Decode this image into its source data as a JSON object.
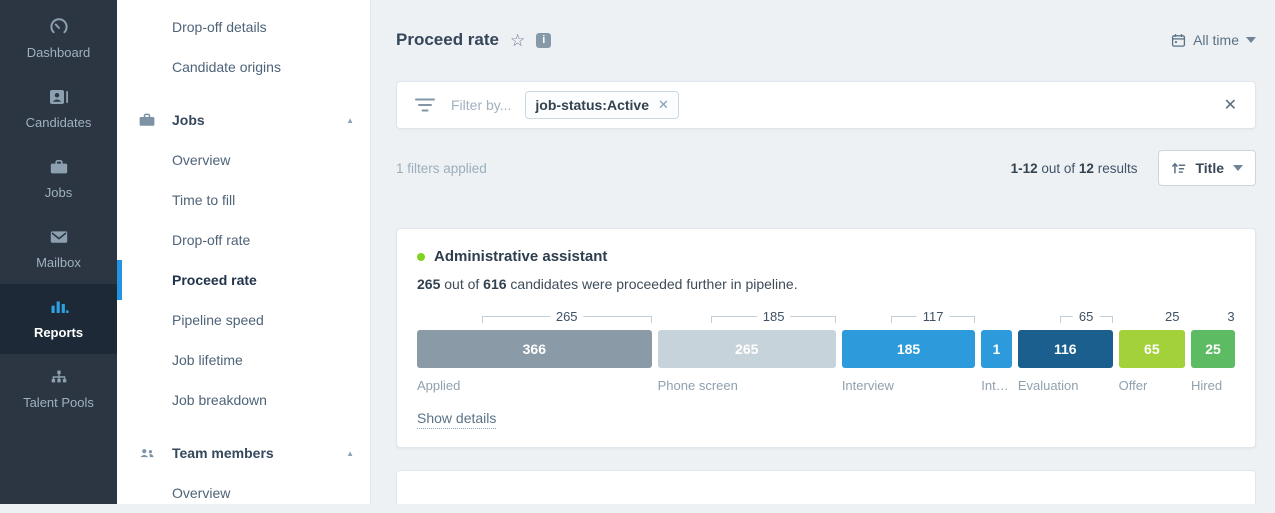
{
  "primary_sidebar": {
    "items": [
      {
        "label": "Dashboard",
        "icon": "gauge-icon",
        "active": false
      },
      {
        "label": "Candidates",
        "icon": "contact-card-icon",
        "active": false
      },
      {
        "label": "Jobs",
        "icon": "briefcase-icon",
        "active": false
      },
      {
        "label": "Mailbox",
        "icon": "envelope-icon",
        "active": false
      },
      {
        "label": "Reports",
        "icon": "bar-chart-icon",
        "active": true
      },
      {
        "label": "Talent Pools",
        "icon": "sitemap-icon",
        "active": false
      }
    ]
  },
  "secondary_sidebar": {
    "items": [
      {
        "label": "Drop-off details",
        "type": "item",
        "active": false
      },
      {
        "label": "Candidate origins",
        "type": "item",
        "active": false
      },
      {
        "label": "Jobs",
        "type": "section",
        "icon": "briefcase-icon",
        "caret": "up"
      },
      {
        "label": "Overview",
        "type": "item",
        "active": false
      },
      {
        "label": "Time to fill",
        "type": "item",
        "active": false
      },
      {
        "label": "Drop-off rate",
        "type": "item",
        "active": false
      },
      {
        "label": "Proceed rate",
        "type": "item",
        "active": true
      },
      {
        "label": "Pipeline speed",
        "type": "item",
        "active": false
      },
      {
        "label": "Job lifetime",
        "type": "item",
        "active": false
      },
      {
        "label": "Job breakdown",
        "type": "item",
        "active": false
      },
      {
        "label": "Team members",
        "type": "section",
        "icon": "people-icon",
        "caret": "up"
      },
      {
        "label": "Overview",
        "type": "item",
        "active": false
      }
    ]
  },
  "header": {
    "title": "Proceed rate",
    "date_range": "All time"
  },
  "filter_bar": {
    "placeholder": "Filter by...",
    "chips": [
      {
        "label": "job-status:Active"
      }
    ]
  },
  "results_bar": {
    "filters_applied": "1 filters applied",
    "range": "1-12",
    "out_of_word": "out of",
    "total": "12",
    "results_word": "results",
    "sort_label": "Title"
  },
  "job_card": {
    "title": "Administrative assistant",
    "status_color": "#7fd320",
    "summary_proceeded": "265",
    "summary_out_of": "out of",
    "summary_total": "616",
    "summary_rest": "candidates were proceeded further in pipeline.",
    "show_details_label": "Show details"
  },
  "chart_data": {
    "type": "bar",
    "subtype": "pipeline-funnel",
    "title": "Administrative assistant — Proceed rate",
    "summary": {
      "proceeded_total": 265,
      "candidates_total": 616
    },
    "stages": [
      {
        "label": "Applied",
        "value": 366,
        "proceeded": 265,
        "color": "#8b9aa7"
      },
      {
        "label": "Phone screen",
        "value": 265,
        "proceeded": 185,
        "color": "#c7d3da"
      },
      {
        "label": "Interview",
        "value": 185,
        "proceeded": 117,
        "color": "#2d9bdb"
      },
      {
        "label": "Int…",
        "value": 1,
        "proceeded": null,
        "color": "#2d9bdb"
      },
      {
        "label": "Evaluation",
        "value": 116,
        "proceeded": 65,
        "color": "#1a5f8e"
      },
      {
        "label": "Offer",
        "value": 65,
        "proceeded": 25,
        "color": "#a2d139"
      },
      {
        "label": "Hired",
        "value": 25,
        "proceeded": 3,
        "color": "#5dbb63"
      }
    ],
    "legend": false,
    "grid": false
  },
  "colors": {
    "accent_blue": "#2494e0",
    "sidebar_bg": "#2b3642",
    "sidebar_active_bg": "#1d2936",
    "main_bg": "#edf1f4",
    "bracket_line": "#c3cfd8"
  }
}
